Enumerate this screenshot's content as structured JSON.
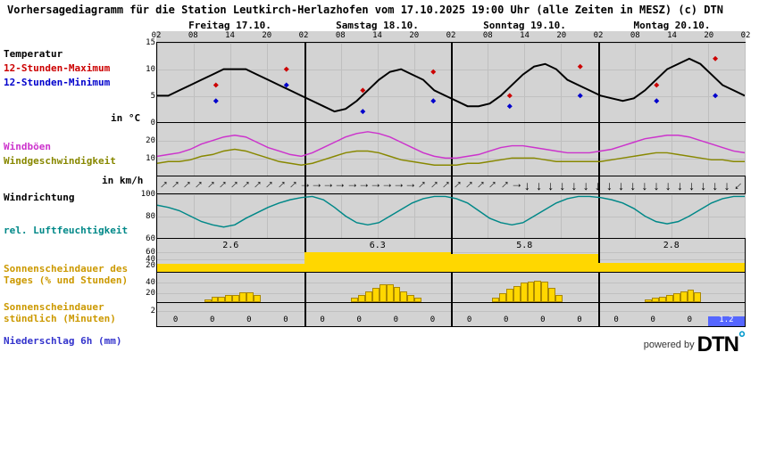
{
  "title": "Vorhersagediagramm für die Station Leutkirch-Herlazhofen vom 17.10.2025 19:00 Uhr (alle Zeiten in MESZ)   (c) DTN",
  "days": [
    "Freitag 17.10.",
    "Samstag 18.10.",
    "Sonntag 19.10.",
    "Montag 20.10."
  ],
  "hour_ticks": [
    "02",
    "08",
    "14",
    "20",
    "02",
    "08",
    "14",
    "20",
    "02",
    "08",
    "14",
    "20",
    "02",
    "08",
    "14",
    "20",
    "02"
  ],
  "labels": {
    "temperatur": "Temperatur",
    "max": "12-Stunden-Maximum",
    "min": "12-Stunden-Minimum",
    "temp_unit": "in °C",
    "windboen": "Windböen",
    "windspeed": "Windgeschwindigkeit",
    "wind_unit": "in km/h",
    "windrichtung": "Windrichtung",
    "relhum": "rel. Luftfeuchtigkeit",
    "sun_day": "Sonnenscheindauer des Tages (% und Stunden)",
    "sun_hour": "Sonnenscheindauer stündlich (Minuten)",
    "precip": "Niederschlag 6h (mm)"
  },
  "label_colors": {
    "temperatur": "#000000",
    "max": "#cc0000",
    "min": "#0000cc",
    "windboen": "#cc33cc",
    "windspeed": "#888800",
    "windrichtung": "#000000",
    "relhum": "#008888",
    "sun_day": "#cc9900",
    "sun_hour": "#cc9900",
    "precip": "#3333cc"
  },
  "temp_panel": {
    "height": 90,
    "ymin": 0,
    "ymax": 15,
    "yticks": [
      0,
      5,
      10,
      15
    ],
    "line_color": "#000000",
    "line": [
      5,
      5,
      6,
      7,
      8,
      9,
      10,
      10,
      10,
      9,
      8,
      7,
      6,
      5,
      4,
      3,
      2,
      2.5,
      4,
      6,
      8,
      9.5,
      10,
      9,
      8,
      6,
      5,
      4,
      3,
      3,
      3.5,
      5,
      7,
      9,
      10.5,
      11,
      10,
      8,
      7,
      6,
      5,
      4.5,
      4,
      4.5,
      6,
      8,
      10,
      11,
      12,
      11,
      9,
      7,
      6,
      5
    ],
    "max_points": [
      {
        "x": 0.1,
        "y": 7
      },
      {
        "x": 0.22,
        "y": 10
      },
      {
        "x": 0.35,
        "y": 6
      },
      {
        "x": 0.47,
        "y": 9.5
      },
      {
        "x": 0.6,
        "y": 5
      },
      {
        "x": 0.72,
        "y": 10.5
      },
      {
        "x": 0.85,
        "y": 7
      },
      {
        "x": 0.95,
        "y": 12
      }
    ],
    "min_points": [
      {
        "x": 0.1,
        "y": 4
      },
      {
        "x": 0.22,
        "y": 7
      },
      {
        "x": 0.35,
        "y": 2
      },
      {
        "x": 0.47,
        "y": 4
      },
      {
        "x": 0.6,
        "y": 3
      },
      {
        "x": 0.72,
        "y": 5
      },
      {
        "x": 0.85,
        "y": 4
      },
      {
        "x": 0.95,
        "y": 5
      }
    ],
    "max_color": "#cc0000",
    "min_color": "#0000cc"
  },
  "wind_panel": {
    "height": 60,
    "ymin": 0,
    "ymax": 30,
    "yticks": [
      10,
      20
    ],
    "gust_color": "#cc33cc",
    "speed_color": "#888800",
    "gust": [
      11,
      12,
      13,
      15,
      18,
      20,
      22,
      23,
      22,
      19,
      16,
      14,
      12,
      11,
      13,
      16,
      19,
      22,
      24,
      25,
      24,
      22,
      19,
      16,
      13,
      11,
      10,
      10,
      11,
      12,
      14,
      16,
      17,
      17,
      16,
      15,
      14,
      13,
      13,
      13,
      14,
      15,
      17,
      19,
      21,
      22,
      23,
      23,
      22,
      20,
      18,
      16,
      14,
      13
    ],
    "speed": [
      7,
      8,
      8,
      9,
      11,
      12,
      14,
      15,
      14,
      12,
      10,
      8,
      7,
      6,
      7,
      9,
      11,
      13,
      14,
      14,
      13,
      11,
      9,
      8,
      7,
      6,
      6,
      6,
      7,
      7,
      8,
      9,
      10,
      10,
      10,
      9,
      8,
      8,
      8,
      8,
      8,
      9,
      10,
      11,
      12,
      13,
      13,
      12,
      11,
      10,
      9,
      9,
      8,
      8
    ]
  },
  "winddir_panel": {
    "height": 20,
    "arrows": [
      225,
      225,
      225,
      225,
      225,
      225,
      225,
      225,
      225,
      225,
      225,
      225,
      270,
      270,
      270,
      270,
      270,
      270,
      270,
      270,
      270,
      270,
      225,
      225,
      225,
      225,
      225,
      225,
      225,
      225,
      270,
      0,
      0,
      0,
      0,
      0,
      0,
      0,
      0,
      0,
      0,
      0,
      0,
      0,
      0,
      0,
      0,
      0,
      0,
      45
    ]
  },
  "hum_panel": {
    "height": 50,
    "ymin": 60,
    "ymax": 100,
    "yticks": [
      60,
      80,
      100
    ],
    "line_color": "#008888",
    "line": [
      90,
      88,
      85,
      80,
      75,
      72,
      70,
      72,
      78,
      83,
      88,
      92,
      95,
      97,
      98,
      95,
      88,
      80,
      74,
      72,
      74,
      80,
      86,
      92,
      96,
      98,
      98,
      96,
      92,
      85,
      78,
      74,
      72,
      74,
      80,
      86,
      92,
      96,
      98,
      98,
      97,
      95,
      92,
      87,
      80,
      75,
      73,
      75,
      80,
      86,
      92,
      96,
      98,
      98
    ]
  },
  "sunday_panel": {
    "height": 38,
    "ymin": 0,
    "ymax": 100,
    "yticks": [
      20,
      40,
      60
    ],
    "bar_color": "#ffd700",
    "bars": [
      {
        "x": 0,
        "w": 0.25,
        "pct": 24,
        "label": "2.6"
      },
      {
        "x": 0.25,
        "w": 0.25,
        "pct": 58,
        "label": "6.3"
      },
      {
        "x": 0.5,
        "w": 0.25,
        "pct": 53,
        "label": "5.8"
      },
      {
        "x": 0.75,
        "w": 0.25,
        "pct": 26,
        "label": "2.8"
      }
    ]
  },
  "sunhour_panel": {
    "height": 34,
    "ymin": 0,
    "ymax": 60,
    "yticks": [
      20,
      40
    ],
    "bar_color": "#ffd700",
    "days": [
      {
        "start": 0.08,
        "bars": [
          5,
          10,
          10,
          14,
          14,
          20,
          20,
          14
        ]
      },
      {
        "start": 0.33,
        "bars": [
          8,
          14,
          22,
          28,
          35,
          35,
          30,
          22,
          14,
          8
        ]
      },
      {
        "start": 0.57,
        "bars": [
          8,
          18,
          26,
          32,
          38,
          40,
          42,
          40,
          28,
          15
        ]
      },
      {
        "start": 0.83,
        "bars": [
          5,
          8,
          10,
          14,
          18,
          22,
          24,
          20
        ]
      }
    ]
  },
  "precip_panel": {
    "height": 28,
    "ymin": 0,
    "ymax": 3,
    "yticks": [
      2
    ],
    "bar_color": "#5566ff",
    "values": [
      0,
      0,
      0,
      0,
      0,
      0,
      0,
      0,
      0,
      0,
      0,
      0,
      0,
      0,
      0,
      1.2
    ],
    "labels": [
      "0",
      "0",
      "0",
      "0",
      "0",
      "0",
      "0",
      "0",
      "0",
      "0",
      "0",
      "0",
      "0",
      "0",
      "0",
      "1.2"
    ]
  },
  "footer_text": "powered by",
  "footer_logo": "DTN",
  "background_color": "#d3d3d3",
  "grid_color": "#c0c0c0"
}
